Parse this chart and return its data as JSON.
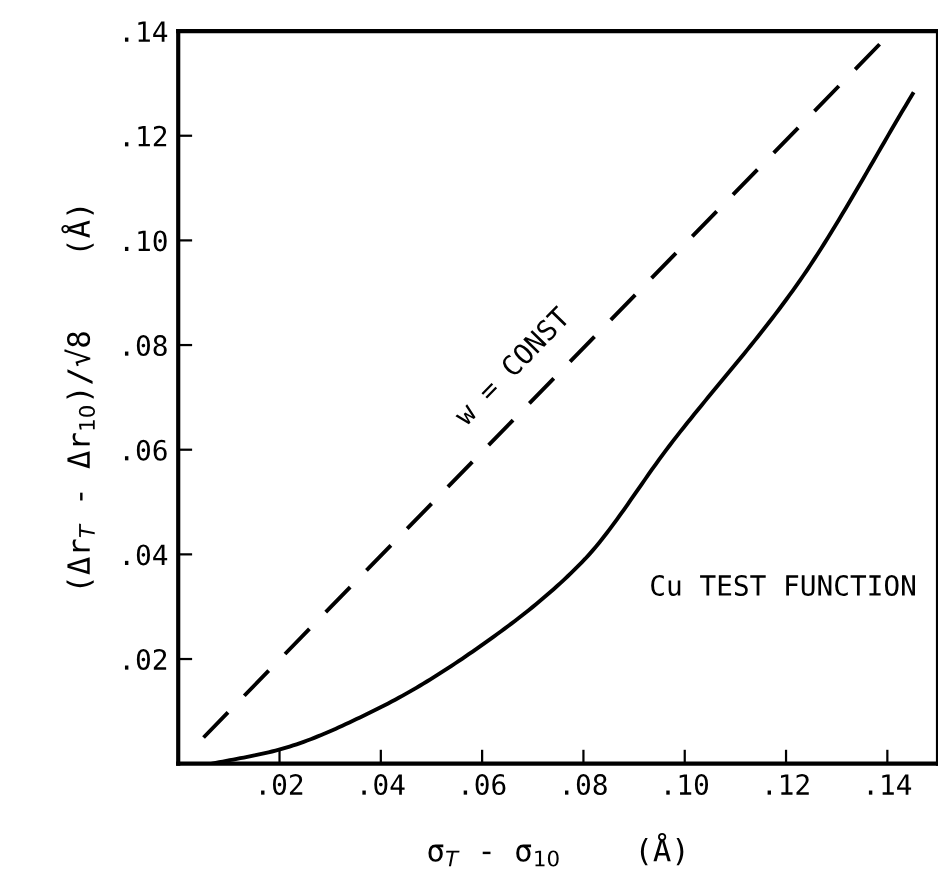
{
  "chart_data": {
    "type": "line",
    "xlabel": "σ$_{T}$ - σ$_{10}$    (Å)",
    "ylabel": "(Δr$_{T}$ - Δr$_{10}$)/√8    (Å)",
    "series": [
      {
        "color": "#000000",
        "line_style": "dashed",
        "x": [
          0.005,
          0.14
        ],
        "values": [
          0.005,
          0.139
        ]
      },
      {
        "color": "#000000",
        "line_style": "solid",
        "x": [
          0.0067,
          0.02,
          0.04,
          0.06,
          0.08,
          0.097,
          0.123,
          0.145
        ],
        "values": [
          0.0,
          0.0027,
          0.0108,
          0.0227,
          0.0388,
          0.0608,
          0.0927,
          0.128
        ]
      }
    ],
    "annotations": [
      {
        "text": "w = CONST",
        "x": 0.07,
        "y": 0.072
      },
      "Cu TEST FUNCTION"
    ],
    "xlim": [
      0,
      0.15
    ],
    "ylim": [
      0,
      0.14
    ],
    "xticks": [
      {
        "value": 0.02,
        "label": ".02"
      },
      {
        "value": 0.04,
        "label": ".04"
      },
      {
        "value": 0.06,
        "label": ".06"
      },
      {
        "value": 0.08,
        "label": ".08"
      },
      {
        "value": 0.1,
        "label": ".10"
      },
      {
        "value": 0.12,
        "label": ".12"
      },
      {
        "value": 0.14,
        "label": ".14"
      }
    ],
    "yticks": [
      {
        "value": 0.02,
        "label": ".02"
      },
      {
        "value": 0.04,
        "label": ".04"
      },
      {
        "value": 0.06,
        "label": ".06"
      },
      {
        "value": 0.08,
        "label": ".08"
      },
      {
        "value": 0.1,
        "label": ".10"
      },
      {
        "value": 0.12,
        "label": ".12"
      },
      {
        "value": 0.14,
        "label": ".14"
      }
    ],
    "grid": false,
    "legend": false
  }
}
